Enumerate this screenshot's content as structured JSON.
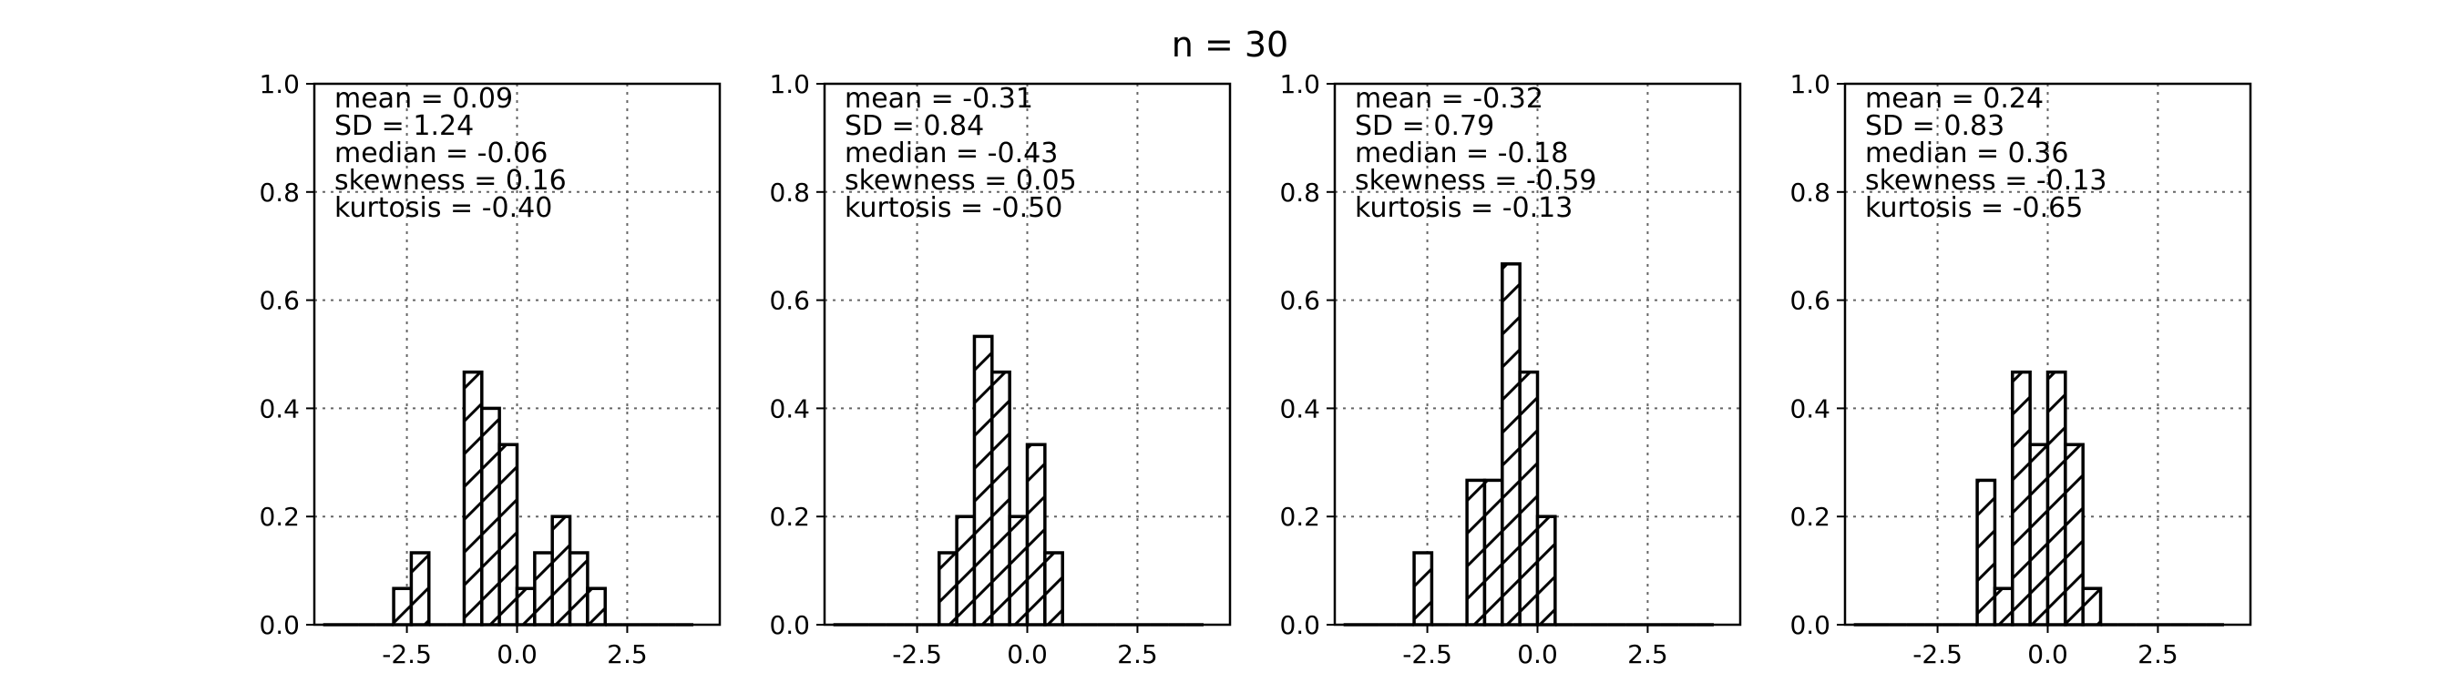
{
  "figure": {
    "title": "n = 30"
  },
  "chart_data": [
    {
      "type": "bar",
      "histogram": true,
      "bin_edges": [
        -4.4,
        -4.0,
        -3.6,
        -3.2,
        -2.8,
        -2.4,
        -2.0,
        -1.6,
        -1.2,
        -0.8,
        -0.4,
        0.0,
        0.4,
        0.8,
        1.2,
        1.6,
        2.0,
        2.4,
        2.8,
        3.2,
        3.6,
        4.0
      ],
      "values": [
        0,
        0,
        0,
        0,
        0.067,
        0.133,
        0,
        0,
        0.467,
        0.4,
        0.333,
        0.067,
        0.133,
        0.2,
        0.133,
        0.067,
        0,
        0,
        0,
        0,
        0
      ],
      "xlim": [
        -4.6,
        4.6
      ],
      "ylim": [
        0,
        1.0
      ],
      "xticks": [
        "-2.5",
        "0.0",
        "2.5"
      ],
      "xtick_values": [
        -2.5,
        0.0,
        2.5
      ],
      "yticks": [
        "0.0",
        "0.2",
        "0.4",
        "0.6",
        "0.8",
        "1.0"
      ],
      "ytick_values": [
        0,
        0.2,
        0.4,
        0.6,
        0.8,
        1.0
      ],
      "grid": true,
      "hatch": "diagonal",
      "stats": [
        "mean = 0.09",
        "SD = 1.24",
        "median = -0.06",
        "skewness = 0.16",
        "kurtosis = -0.40"
      ]
    },
    {
      "type": "bar",
      "histogram": true,
      "bin_edges": [
        -4.4,
        -4.0,
        -3.6,
        -3.2,
        -2.8,
        -2.4,
        -2.0,
        -1.6,
        -1.2,
        -0.8,
        -0.4,
        0.0,
        0.4,
        0.8,
        1.2,
        1.6,
        2.0,
        2.4,
        2.8,
        3.2,
        3.6,
        4.0
      ],
      "values": [
        0,
        0,
        0,
        0,
        0,
        0,
        0.133,
        0.2,
        0.533,
        0.467,
        0.2,
        0.333,
        0.133,
        0,
        0,
        0,
        0,
        0,
        0,
        0,
        0
      ],
      "xlim": [
        -4.6,
        4.6
      ],
      "ylim": [
        0,
        1.0
      ],
      "xticks": [
        "-2.5",
        "0.0",
        "2.5"
      ],
      "xtick_values": [
        -2.5,
        0.0,
        2.5
      ],
      "yticks": [
        "0.0",
        "0.2",
        "0.4",
        "0.6",
        "0.8",
        "1.0"
      ],
      "ytick_values": [
        0,
        0.2,
        0.4,
        0.6,
        0.8,
        1.0
      ],
      "grid": true,
      "hatch": "diagonal",
      "stats": [
        "mean = -0.31",
        "SD = 0.84",
        "median = -0.43",
        "skewness = 0.05",
        "kurtosis = -0.50"
      ]
    },
    {
      "type": "bar",
      "histogram": true,
      "bin_edges": [
        -4.4,
        -4.0,
        -3.6,
        -3.2,
        -2.8,
        -2.4,
        -2.0,
        -1.6,
        -1.2,
        -0.8,
        -0.4,
        0.0,
        0.4,
        0.8,
        1.2,
        1.6,
        2.0,
        2.4,
        2.8,
        3.2,
        3.6,
        4.0
      ],
      "values": [
        0,
        0,
        0,
        0,
        0.133,
        0,
        0,
        0.267,
        0.267,
        0.667,
        0.467,
        0.2,
        0,
        0,
        0,
        0,
        0,
        0,
        0,
        0,
        0
      ],
      "xlim": [
        -4.6,
        4.6
      ],
      "ylim": [
        0,
        1.0
      ],
      "xticks": [
        "-2.5",
        "0.0",
        "2.5"
      ],
      "xtick_values": [
        -2.5,
        0.0,
        2.5
      ],
      "yticks": [
        "0.0",
        "0.2",
        "0.4",
        "0.6",
        "0.8",
        "1.0"
      ],
      "ytick_values": [
        0,
        0.2,
        0.4,
        0.6,
        0.8,
        1.0
      ],
      "grid": true,
      "hatch": "diagonal",
      "stats": [
        "mean = -0.32",
        "SD = 0.79",
        "median = -0.18",
        "skewness = -0.59",
        "kurtosis = -0.13"
      ]
    },
    {
      "type": "bar",
      "histogram": true,
      "bin_edges": [
        -4.4,
        -4.0,
        -3.6,
        -3.2,
        -2.8,
        -2.4,
        -2.0,
        -1.6,
        -1.2,
        -0.8,
        -0.4,
        0.0,
        0.4,
        0.8,
        1.2,
        1.6,
        2.0,
        2.4,
        2.8,
        3.2,
        3.6,
        4.0
      ],
      "values": [
        0,
        0,
        0,
        0,
        0,
        0,
        0,
        0.267,
        0.067,
        0.467,
        0.333,
        0.467,
        0.333,
        0.067,
        0,
        0,
        0,
        0,
        0,
        0,
        0
      ],
      "xlim": [
        -4.6,
        4.6
      ],
      "ylim": [
        0,
        1.0
      ],
      "xticks": [
        "-2.5",
        "0.0",
        "2.5"
      ],
      "xtick_values": [
        -2.5,
        0.0,
        2.5
      ],
      "yticks": [
        "0.0",
        "0.2",
        "0.4",
        "0.6",
        "0.8",
        "1.0"
      ],
      "ytick_values": [
        0,
        0.2,
        0.4,
        0.6,
        0.8,
        1.0
      ],
      "grid": true,
      "hatch": "diagonal",
      "stats": [
        "mean = 0.24",
        "SD = 0.83",
        "median = 0.36",
        "skewness = -0.13",
        "kurtosis = -0.65"
      ]
    }
  ]
}
